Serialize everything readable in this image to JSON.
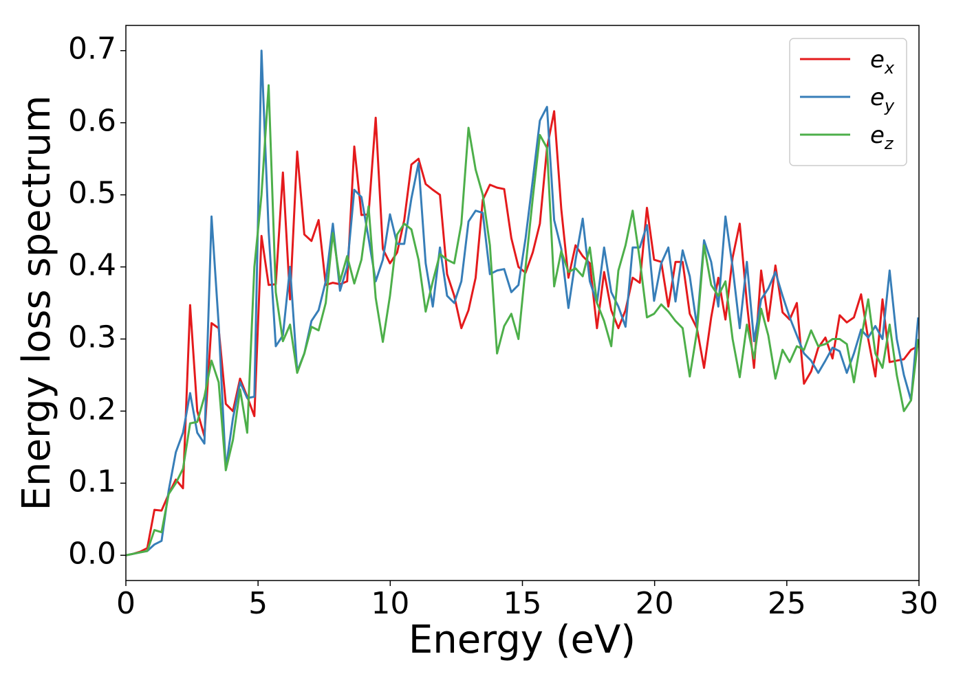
{
  "chart_data": {
    "type": "line",
    "xlabel": "Energy (eV)",
    "ylabel": "Energy loss spectrum",
    "xlim": [
      0,
      30
    ],
    "ylim": [
      -0.035,
      0.735
    ],
    "xticks": [
      0,
      5,
      10,
      15,
      20,
      25,
      30
    ],
    "yticks": [
      {
        "value": 0,
        "label": "0.0"
      },
      0.1,
      0.2,
      0.3,
      0.4,
      0.5,
      0.6,
      0.7
    ],
    "grid": false,
    "legend": "upper right",
    "x": [
      0,
      0.27,
      0.54,
      0.81,
      1.08,
      1.35,
      1.62,
      1.89,
      2.16,
      2.43,
      2.7,
      2.97,
      3.24,
      3.51,
      3.78,
      4.05,
      4.32,
      4.59,
      4.86,
      5.13,
      5.4,
      5.67,
      5.94,
      6.21,
      6.48,
      6.75,
      7.02,
      7.29,
      7.56,
      7.83,
      8.1,
      8.37,
      8.64,
      8.91,
      9.18,
      9.45,
      9.72,
      9.99,
      10.26,
      10.53,
      10.8,
      11.07,
      11.34,
      11.61,
      11.88,
      12.15,
      12.42,
      12.69,
      12.96,
      13.23,
      13.5,
      13.77,
      14.04,
      14.31,
      14.58,
      14.85,
      15.12,
      15.39,
      15.66,
      15.93,
      16.2,
      16.47,
      16.74,
      17.01,
      17.28,
      17.55,
      17.82,
      18.09,
      18.36,
      18.63,
      18.9,
      19.17,
      19.44,
      19.71,
      19.98,
      20.25,
      20.52,
      20.79,
      21.06,
      21.33,
      21.6,
      21.87,
      22.14,
      22.41,
      22.68,
      22.95,
      23.22,
      23.49,
      23.76,
      24.03,
      24.3,
      24.57,
      24.84,
      25.11,
      25.38,
      25.65,
      25.92,
      26.19,
      26.46,
      26.73,
      27,
      27.27,
      27.54,
      27.81,
      28.08,
      28.35,
      28.62,
      28.89,
      29.16,
      29.43,
      29.7,
      29.97
    ],
    "series": [
      {
        "name": "e_x",
        "color": "#e41a1c",
        "values": [
          0,
          0.002,
          0.005,
          0.01,
          0.063,
          0.062,
          0.085,
          0.105,
          0.093,
          0.347,
          0.2,
          0.165,
          0.322,
          0.315,
          0.21,
          0.2,
          0.245,
          0.22,
          0.193,
          0.443,
          0.375,
          0.376,
          0.531,
          0.355,
          0.56,
          0.445,
          0.436,
          0.465,
          0.375,
          0.378,
          0.376,
          0.38,
          0.567,
          0.472,
          0.473,
          0.607,
          0.425,
          0.405,
          0.42,
          0.465,
          0.542,
          0.55,
          0.515,
          0.507,
          0.5,
          0.39,
          0.36,
          0.315,
          0.34,
          0.385,
          0.493,
          0.514,
          0.51,
          0.508,
          0.44,
          0.4,
          0.392,
          0.42,
          0.46,
          0.565,
          0.616,
          0.48,
          0.385,
          0.43,
          0.415,
          0.405,
          0.315,
          0.393,
          0.34,
          0.315,
          0.34,
          0.385,
          0.378,
          0.482,
          0.41,
          0.407,
          0.345,
          0.407,
          0.407,
          0.335,
          0.315,
          0.26,
          0.33,
          0.385,
          0.327,
          0.413,
          0.46,
          0.35,
          0.26,
          0.395,
          0.325,
          0.402,
          0.337,
          0.327,
          0.35,
          0.238,
          0.255,
          0.288,
          0.302,
          0.273,
          0.333,
          0.323,
          0.33,
          0.362,
          0.3,
          0.248,
          0.355,
          0.268,
          0.27,
          0.272,
          0.285,
          0.29
        ]
      },
      {
        "name": "e_y",
        "color": "#377eb8",
        "values": [
          0,
          0.002,
          0.004,
          0.006,
          0.015,
          0.02,
          0.09,
          0.143,
          0.17,
          0.225,
          0.17,
          0.155,
          0.47,
          0.32,
          0.12,
          0.19,
          0.24,
          0.218,
          0.22,
          0.7,
          0.45,
          0.29,
          0.305,
          0.4,
          0.255,
          0.28,
          0.325,
          0.34,
          0.38,
          0.46,
          0.367,
          0.4,
          0.507,
          0.497,
          0.44,
          0.38,
          0.41,
          0.473,
          0.432,
          0.432,
          0.495,
          0.544,
          0.405,
          0.345,
          0.427,
          0.36,
          0.35,
          0.38,
          0.463,
          0.478,
          0.475,
          0.39,
          0.395,
          0.397,
          0.365,
          0.375,
          0.44,
          0.52,
          0.603,
          0.622,
          0.465,
          0.425,
          0.343,
          0.41,
          0.467,
          0.38,
          0.35,
          0.427,
          0.365,
          0.345,
          0.317,
          0.427,
          0.427,
          0.458,
          0.353,
          0.405,
          0.427,
          0.352,
          0.423,
          0.387,
          0.318,
          0.437,
          0.407,
          0.345,
          0.47,
          0.4,
          0.315,
          0.407,
          0.297,
          0.355,
          0.37,
          0.393,
          0.36,
          0.33,
          0.305,
          0.28,
          0.27,
          0.253,
          0.27,
          0.288,
          0.283,
          0.253,
          0.28,
          0.313,
          0.302,
          0.318,
          0.3,
          0.395,
          0.3,
          0.25,
          0.215,
          0.33
        ]
      },
      {
        "name": "e_z",
        "color": "#4daf4a",
        "values": [
          0,
          0.002,
          0.004,
          0.006,
          0.035,
          0.032,
          0.085,
          0.1,
          0.12,
          0.183,
          0.185,
          0.22,
          0.27,
          0.24,
          0.118,
          0.16,
          0.23,
          0.17,
          0.4,
          0.5,
          0.652,
          0.365,
          0.297,
          0.32,
          0.253,
          0.28,
          0.317,
          0.312,
          0.35,
          0.447,
          0.38,
          0.415,
          0.377,
          0.41,
          0.484,
          0.357,
          0.296,
          0.36,
          0.445,
          0.46,
          0.452,
          0.41,
          0.338,
          0.38,
          0.418,
          0.41,
          0.405,
          0.46,
          0.593,
          0.535,
          0.5,
          0.43,
          0.28,
          0.318,
          0.335,
          0.3,
          0.4,
          0.495,
          0.583,
          0.565,
          0.373,
          0.422,
          0.393,
          0.398,
          0.387,
          0.427,
          0.35,
          0.325,
          0.29,
          0.395,
          0.43,
          0.478,
          0.41,
          0.33,
          0.335,
          0.348,
          0.338,
          0.325,
          0.315,
          0.248,
          0.31,
          0.43,
          0.375,
          0.36,
          0.38,
          0.3,
          0.247,
          0.32,
          0.273,
          0.342,
          0.305,
          0.245,
          0.285,
          0.268,
          0.29,
          0.285,
          0.312,
          0.29,
          0.293,
          0.3,
          0.3,
          0.293,
          0.24,
          0.3,
          0.355,
          0.28,
          0.26,
          0.32,
          0.25,
          0.2,
          0.215,
          0.3
        ]
      }
    ]
  }
}
